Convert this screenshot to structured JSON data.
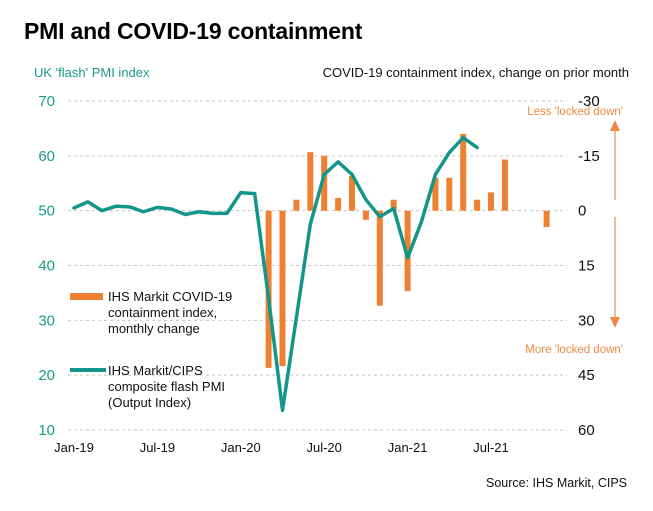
{
  "title": "PMI and COVID-19 containment",
  "left_axis_title": "UK 'flash' PMI index",
  "right_axis_title": "COVID-19 containment index, change on prior month",
  "source": "Source: IHS Markit, CIPS",
  "colors": {
    "pmi_line": "#13968a",
    "containment_bars": "#ee8131",
    "annotation": "#ee8a45",
    "left_axis_text": "#1a9a8c",
    "gridline": "#c8c8c8"
  },
  "chart_data": {
    "type": "bar+line",
    "title": "PMI and COVID-19 containment",
    "xlabel": "",
    "ylabel_left": "UK 'flash' PMI index",
    "ylabel_right": "COVID-19 containment index, change on prior month",
    "ylim_left": [
      10,
      70
    ],
    "yticks_left": [
      "70",
      "60",
      "50",
      "40",
      "30",
      "20",
      "10"
    ],
    "ylim_right": [
      -30,
      60
    ],
    "right_axis_inverted": true,
    "yticks_right": [
      "-30",
      "-15",
      "0",
      "15",
      "30",
      "45",
      "60"
    ],
    "grid": true,
    "x": [
      "Jan-19",
      "Feb-19",
      "Mar-19",
      "Apr-19",
      "May-19",
      "Jun-19",
      "Jul-19",
      "Aug-19",
      "Sep-19",
      "Oct-19",
      "Nov-19",
      "Dec-19",
      "Jan-20",
      "Feb-20",
      "Mar-20",
      "Apr-20",
      "May-20",
      "Jun-20",
      "Jul-20",
      "Aug-20",
      "Sep-20",
      "Oct-20",
      "Nov-20",
      "Dec-20",
      "Jan-21",
      "Feb-21",
      "Mar-21",
      "Apr-21",
      "May-21",
      "Jun-21",
      "Jul-21",
      "Aug-21",
      "Sep-21",
      "Oct-21",
      "Nov-21"
    ],
    "xtick_labels": [
      "Jan-19",
      "Jul-19",
      "Jan-20",
      "Jul-20",
      "Jan-21",
      "Jul-21"
    ],
    "series": [
      {
        "name": "IHS Markit COVID-19 containment index, monthly change",
        "type": "bar",
        "axis": "right",
        "values": [
          null,
          null,
          null,
          null,
          null,
          null,
          null,
          null,
          null,
          null,
          null,
          null,
          null,
          null,
          43,
          42.5,
          -3,
          -16,
          -15,
          -3.5,
          -9.5,
          2.5,
          26,
          -3,
          22,
          0,
          -9,
          -9,
          -21,
          -3,
          -5,
          -14,
          0,
          0,
          4.5
        ]
      },
      {
        "name": "IHS Markit/CIPS composite flash PMI (Output Index)",
        "type": "line",
        "axis": "left",
        "values": [
          50.5,
          51.6,
          50.0,
          50.8,
          50.7,
          49.8,
          50.6,
          50.3,
          49.3,
          49.8,
          49.5,
          49.5,
          53.3,
          53.1,
          34.0,
          13.6,
          30.5,
          47.5,
          56.6,
          58.9,
          56.6,
          52.0,
          48.9,
          50.4,
          41.4,
          48.0,
          56.6,
          60.6,
          63.3,
          61.5,
          null,
          null,
          null,
          null,
          null
        ]
      }
    ],
    "legend": {
      "placement": "left-center",
      "entries": [
        {
          "lines": [
            "IHS Markit COVID-19",
            "containment index,",
            "monthly change"
          ]
        },
        {
          "lines": [
            "IHS Markit/CIPS",
            "composite flash PMI",
            "(Output Index)"
          ]
        }
      ]
    },
    "annotations": {
      "up_arrow_label": "Less 'locked down'",
      "down_arrow_label": "More 'locked down'"
    }
  }
}
